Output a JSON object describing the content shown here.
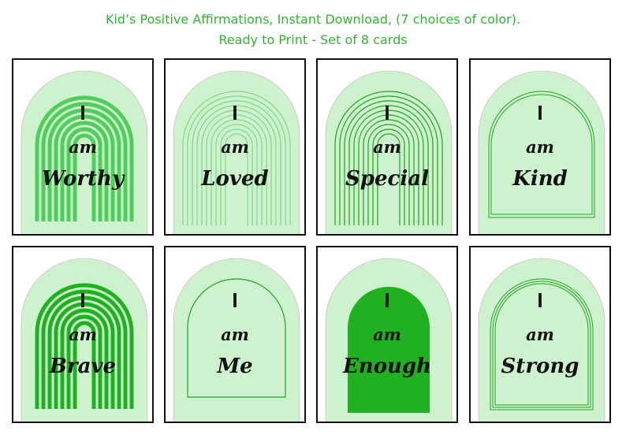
{
  "header": {
    "line1": "Kid’s Positive Affirmations, Instant Download, (7 choices of color).",
    "line2": "Ready to Print - Set of 8 cards"
  },
  "colors": {
    "accent": "#2fb72f",
    "pale": "#cdf2cd",
    "line": "#1fa61f",
    "dark": "#1fb11f"
  },
  "cards": [
    {
      "w1": "I",
      "w2": "am",
      "w3": "Worthy",
      "style": "bold-rainbow"
    },
    {
      "w1": "I",
      "w2": "am",
      "w3": "Loved",
      "style": "thin-rainbow"
    },
    {
      "w1": "I",
      "w2": "am",
      "w3": "Special",
      "style": "dark-thin-rainbow"
    },
    {
      "w1": "I",
      "w2": "am",
      "w3": "Kind",
      "style": "double-outline"
    },
    {
      "w1": "I",
      "w2": "am",
      "w3": "Brave",
      "style": "dark-bold-rainbow"
    },
    {
      "w1": "I",
      "w2": "am",
      "w3": "Me",
      "style": "single-outline"
    },
    {
      "w1": "I",
      "w2": "am",
      "w3": "Enough",
      "style": "solid-arch"
    },
    {
      "w1": "I",
      "w2": "am",
      "w3": "Strong",
      "style": "triple-outline"
    }
  ]
}
